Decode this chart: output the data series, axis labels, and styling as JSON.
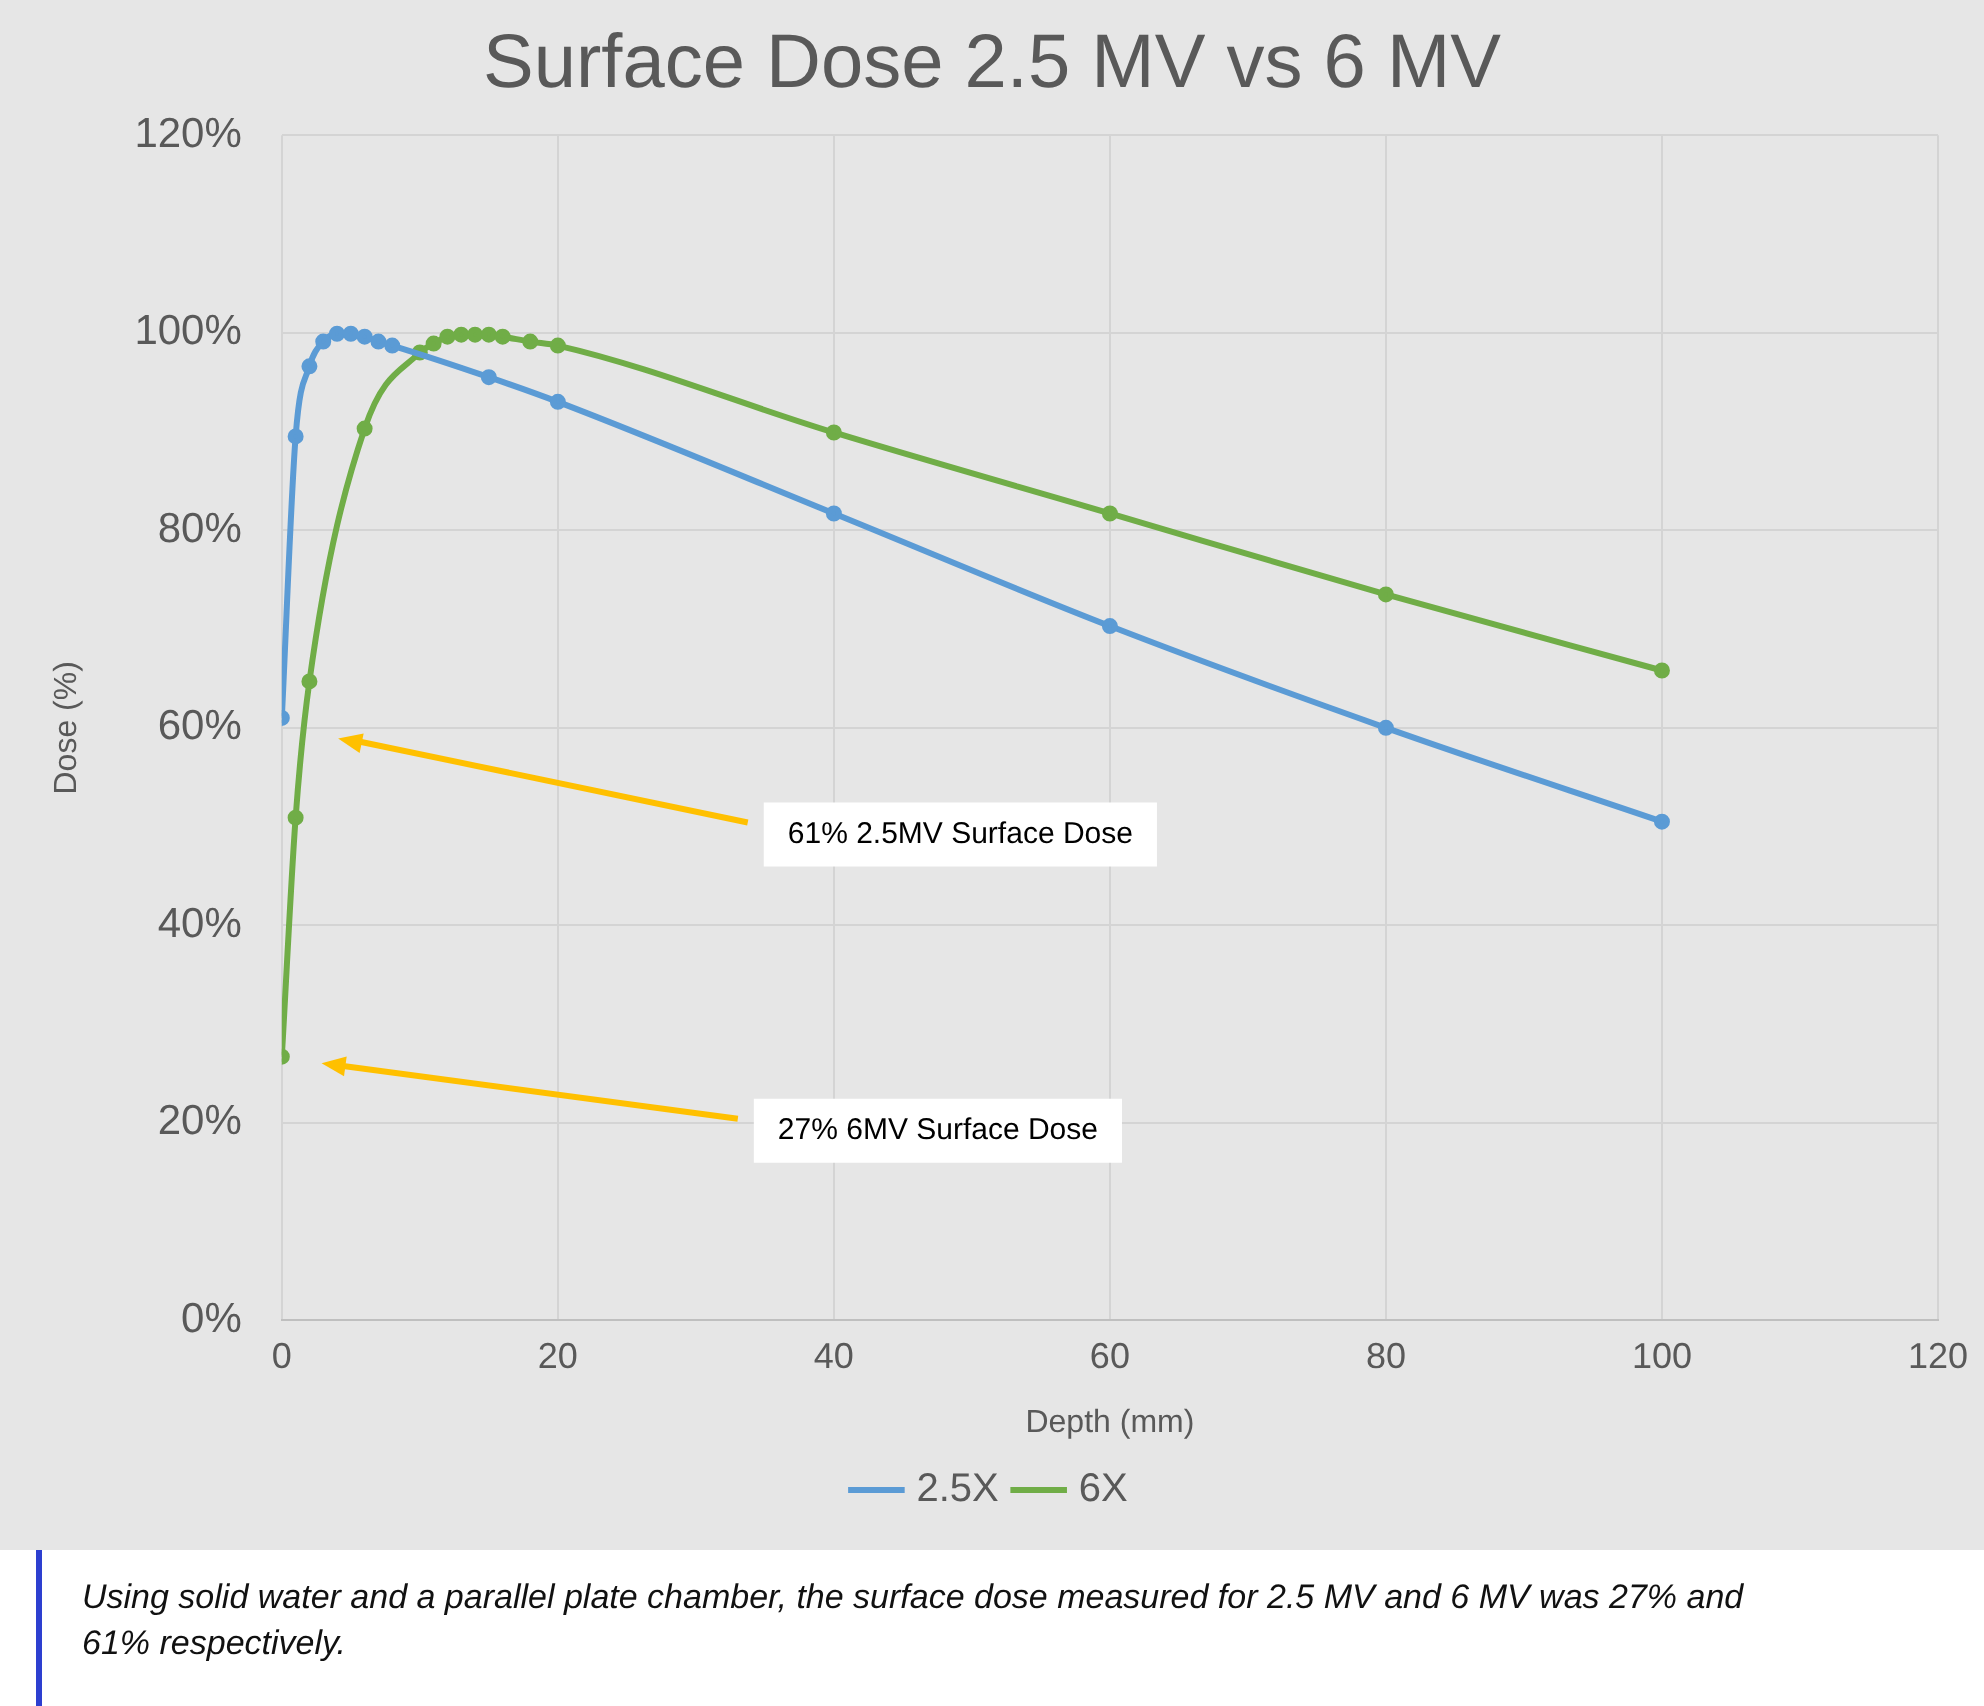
{
  "chart_data": {
    "type": "line",
    "title": "Surface Dose 2.5 MV vs 6 MV",
    "xlabel": "Depth (mm)",
    "ylabel": "Dose (%)",
    "series": [
      {
        "name": "2.5X",
        "color": "#5b9bd5",
        "x": [
          0,
          1,
          2,
          3,
          4,
          5,
          6,
          7,
          8,
          15,
          20,
          40,
          60,
          80,
          100
        ],
        "values": [
          61,
          89.5,
          96.6,
          99.1,
          99.9,
          99.9,
          99.6,
          99.1,
          98.7,
          95.5,
          93,
          81.7,
          70.3,
          60,
          50.5
        ]
      },
      {
        "name": "6X",
        "color": "#70ad47",
        "x": [
          0,
          1,
          2,
          6,
          10,
          11,
          12,
          13,
          14,
          15,
          16,
          18,
          20,
          40,
          60,
          80,
          100
        ],
        "values": [
          26.7,
          50.9,
          64.7,
          90.3,
          98,
          98.9,
          99.6,
          99.8,
          99.8,
          99.8,
          99.6,
          99.1,
          98.7,
          89.9,
          81.7,
          73.5,
          65.8
        ]
      }
    ],
    "xlim": [
      0,
      120
    ],
    "xticks": [
      0,
      20,
      40,
      60,
      80,
      100,
      120
    ],
    "ylim": [
      0,
      120
    ],
    "yticks": [
      {
        "value": 0,
        "label": "0%"
      },
      {
        "value": 20,
        "label": "20%"
      },
      {
        "value": 40,
        "label": "40%"
      },
      {
        "value": 60,
        "label": "60%"
      },
      {
        "value": 80,
        "label": "80%"
      },
      {
        "value": 100,
        "label": "100%"
      },
      {
        "value": 120,
        "label": "120%"
      }
    ],
    "annotations": [
      "61% 2.5MV Surface Dose",
      "27% 6MV Surface Dose",
      "Using solid water and a parallel plate chamber, the surface dose measured for 2.5 MV and 6 MV was 27% and 61% respectively."
    ],
    "grid": true,
    "legend": "bottom",
    "marker": "circle",
    "line_style": "solid"
  }
}
